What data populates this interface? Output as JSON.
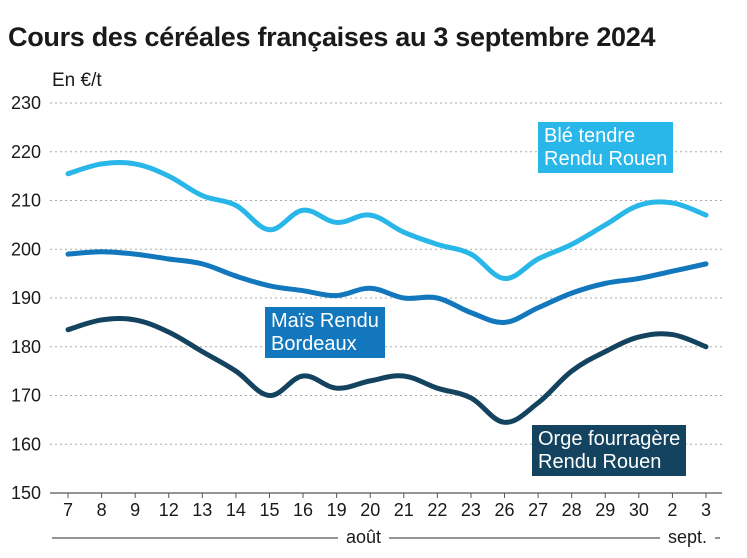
{
  "title": "Cours des céréales françaises au 3 septembre 2024",
  "unit_label": "En €/t",
  "month_labels": {
    "aout": "août",
    "sept": "sept."
  },
  "callouts": {
    "ble": [
      "Blé tendre",
      "Rendu Rouen"
    ],
    "mais": [
      "Maïs Rendu",
      "Bordeaux"
    ],
    "orge": [
      "Orge fourragère",
      "Rendu Rouen"
    ]
  },
  "chart_data": {
    "type": "line",
    "title": "Cours des céréales françaises au 3 septembre 2024",
    "ylabel": "En €/t",
    "ylim": [
      150,
      230
    ],
    "yticks": [
      150,
      160,
      170,
      180,
      190,
      200,
      210,
      220,
      230
    ],
    "grid": true,
    "x": [
      "7",
      "8",
      "9",
      "12",
      "13",
      "14",
      "15",
      "16",
      "19",
      "20",
      "21",
      "22",
      "23",
      "26",
      "27",
      "28",
      "29",
      "30",
      "2",
      "3"
    ],
    "series": [
      {
        "name": "Blé tendre Rendu Rouen",
        "color": "#29b6e8",
        "values": [
          215.5,
          217.5,
          217.5,
          215,
          211,
          209,
          204,
          208,
          205.5,
          207,
          203.5,
          201,
          199,
          194,
          198,
          201,
          205,
          209,
          209.5,
          207
        ]
      },
      {
        "name": "Maïs Rendu Bordeaux",
        "color": "#1277bc",
        "values": [
          199,
          199.5,
          199,
          198,
          197,
          194.5,
          192.5,
          191.5,
          190.5,
          192,
          190,
          190,
          187,
          185,
          188,
          191,
          193,
          194,
          195.5,
          197
        ]
      },
      {
        "name": "Orge fourragère Rendu Rouen",
        "color": "#13435f",
        "values": [
          183.5,
          185.5,
          185.5,
          183,
          179,
          175,
          170,
          174,
          171.5,
          173,
          174,
          171.5,
          169.5,
          164.5,
          168.5,
          175,
          179,
          182,
          182.5,
          180
        ]
      }
    ]
  }
}
